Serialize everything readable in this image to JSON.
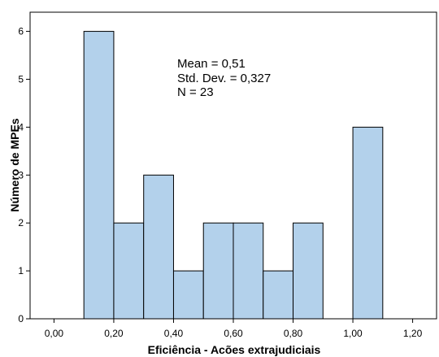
{
  "chart_data": {
    "type": "bar",
    "subtype": "histogram",
    "bin_edges": [
      0.1,
      0.2,
      0.3,
      0.4,
      0.5,
      0.6,
      0.7,
      0.8,
      0.9,
      1.0,
      1.1
    ],
    "values": [
      6,
      2,
      3,
      1,
      2,
      2,
      1,
      2,
      0,
      4
    ],
    "xlabel": "Eficiência - Acões extrajudiciais",
    "ylabel": "Número de MPEs",
    "xlim": [
      -0.08,
      1.28
    ],
    "ylim": [
      0,
      6.4
    ],
    "x_ticks": [
      0.0,
      0.2,
      0.4,
      0.6,
      0.8,
      1.0,
      1.2
    ],
    "x_tick_labels": [
      "0,00",
      "0,20",
      "0,40",
      "0,60",
      "0,80",
      "1,00",
      "1,20"
    ],
    "y_ticks": [
      0,
      1,
      2,
      3,
      4,
      5,
      6
    ],
    "y_tick_labels": [
      "0",
      "1",
      "2",
      "3",
      "4",
      "5",
      "6"
    ],
    "grid": false,
    "bar_color": "#b3d1eb",
    "bar_edge_color": "#000000",
    "stats": {
      "mean": "Mean = 0,51",
      "std": "Std. Dev. = 0,327",
      "n": "N = 23"
    }
  }
}
